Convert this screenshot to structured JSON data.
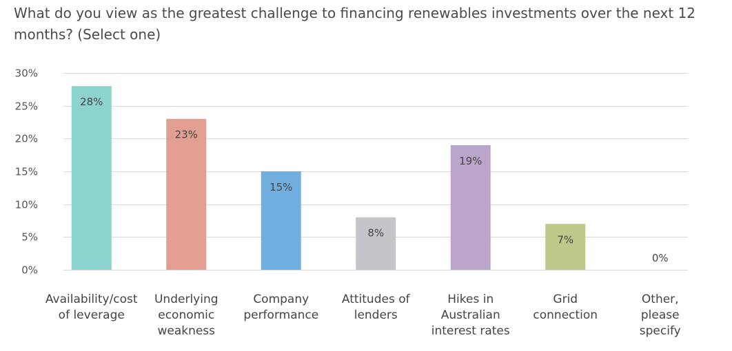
{
  "title": "What do you view as the greatest challenge to financing renewables investments over the next 12 months? (Select one)",
  "chart_data": {
    "type": "bar",
    "title": "What do you view as the greatest challenge to financing renewables investments over the next 12 months? (Select one)",
    "categories": [
      [
        "Availability/cost",
        "of leverage"
      ],
      [
        "Underlying",
        "economic",
        "weakness"
      ],
      [
        "Company",
        "performance"
      ],
      [
        "Attitudes of",
        "lenders"
      ],
      [
        "Hikes in",
        "Australian",
        "interest rates"
      ],
      [
        "Grid",
        "connection"
      ],
      [
        "Other,",
        "please",
        "specify"
      ]
    ],
    "values": [
      28,
      23,
      15,
      8,
      19,
      7,
      0
    ],
    "data_labels": [
      "28%",
      "23%",
      "15%",
      "8%",
      "19%",
      "7%",
      "0%"
    ],
    "colors": [
      "#8dd3cf",
      "#e39e92",
      "#71aee0",
      "#c5c5c9",
      "#bba6cb",
      "#bcc98b",
      "#cccccc"
    ],
    "ylim": [
      0,
      30
    ],
    "yticks": [
      0,
      5,
      10,
      15,
      20,
      25,
      30
    ],
    "ytick_labels": [
      "0%",
      "5%",
      "10%",
      "15%",
      "20%",
      "25%",
      "30%"
    ],
    "grid": true,
    "gridline_color": "#d9d9d9",
    "xlabel": "",
    "ylabel": ""
  }
}
